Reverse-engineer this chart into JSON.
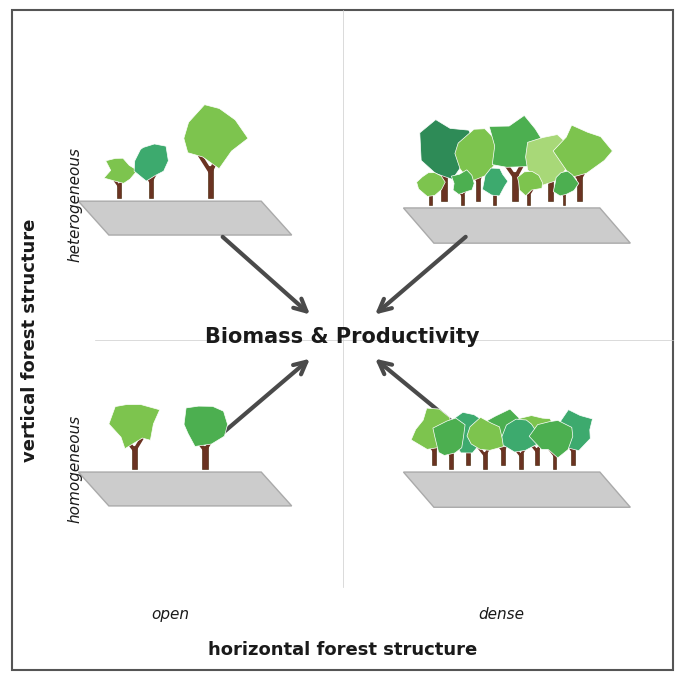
{
  "title": "Biomass & Productivity",
  "xlabel": "horizontal forest structure",
  "ylabel": "vertical forest structure",
  "label_open": "open",
  "label_dense": "dense",
  "label_heterogeneous": "heterogeneous",
  "label_homogeneous": "homogeneous",
  "bg_color": "#ffffff",
  "border_color": "#555555",
  "platform_color": "#cccccc",
  "platform_edge_color": "#aaaaaa",
  "trunk_color": "#6B3322",
  "canopy_lt_green": "#7DC44E",
  "canopy_med_green": "#4CAF50",
  "canopy_dk_green": "#2E8B57",
  "canopy_teal": "#3DAA6E",
  "arrow_color": "#4a4a4a",
  "title_fontsize": 15,
  "label_fontsize": 13,
  "italic_fontsize": 11
}
